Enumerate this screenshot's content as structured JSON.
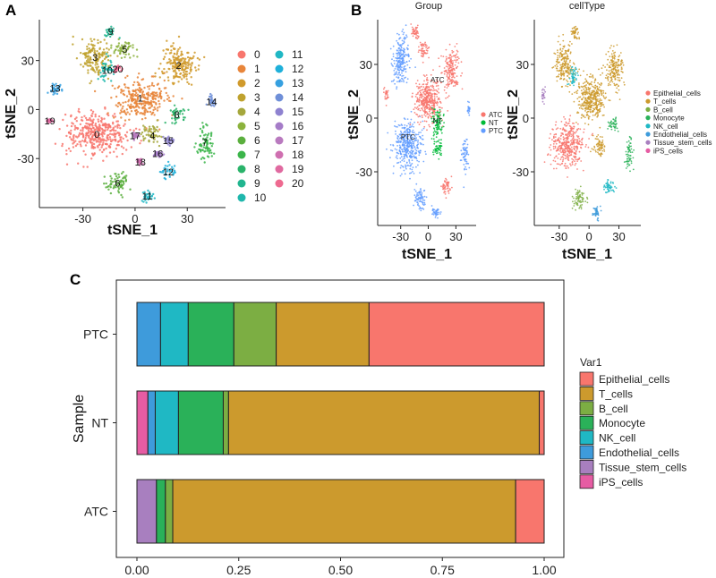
{
  "panel_letters": [
    "A",
    "B",
    "C"
  ],
  "colors": {
    "clusters": [
      "#F8766D",
      "#E8853A",
      "#D09A2C",
      "#BFA22E",
      "#A5A73C",
      "#8BB23C",
      "#5BAF3E",
      "#3BB54A",
      "#2AB36A",
      "#21B58F",
      "#1FB7AC",
      "#20B7C4",
      "#1FB0DA",
      "#36A0E0",
      "#6F8FD8",
      "#8E82D0",
      "#A57CC8",
      "#B97ABF",
      "#CF6FB0",
      "#E06AA0",
      "#EE6A90"
    ],
    "groups": [
      "#F8766D",
      "#00BA38",
      "#619CFF"
    ],
    "celltypes": [
      "#F8766D",
      "#CC9A2D",
      "#7CAE43",
      "#2AB159",
      "#1FB8C4",
      "#3E9BDB",
      "#A87FBF",
      "#E65CA3"
    ]
  },
  "chart_data": [
    {
      "type": "scatter",
      "panel": "A",
      "xlabel": "tSNE_1",
      "ylabel": "tSNE_2",
      "xticks": [
        -30,
        0,
        30
      ],
      "yticks": [
        -30,
        0,
        30
      ],
      "xlim": [
        -55,
        52
      ],
      "ylim": [
        -60,
        55
      ],
      "legend_entries": [
        "0",
        "1",
        "2",
        "3",
        "4",
        "5",
        "6",
        "7",
        "8",
        "9",
        "10",
        "11",
        "12",
        "13",
        "14",
        "15",
        "16",
        "17",
        "18",
        "19",
        "20"
      ],
      "clusters": [
        {
          "label": "0",
          "x": -22,
          "y": -15,
          "rx": 18,
          "ry": 13
        },
        {
          "label": "1",
          "x": 3,
          "y": 7,
          "rx": 15,
          "ry": 12
        },
        {
          "label": "2",
          "x": 25,
          "y": 27,
          "rx": 10,
          "ry": 12
        },
        {
          "label": "3",
          "x": -23,
          "y": 32,
          "rx": 9,
          "ry": 11
        },
        {
          "label": "4",
          "x": 10,
          "y": -16,
          "rx": 6,
          "ry": 6
        },
        {
          "label": "5",
          "x": -6,
          "y": 37,
          "rx": 7,
          "ry": 5
        },
        {
          "label": "6",
          "x": -10,
          "y": -45,
          "rx": 7,
          "ry": 6
        },
        {
          "label": "7",
          "x": 40,
          "y": -20,
          "rx": 5,
          "ry": 10
        },
        {
          "label": "8",
          "x": 24,
          "y": -3,
          "rx": 5,
          "ry": 5
        },
        {
          "label": "9",
          "x": -14,
          "y": 48,
          "rx": 4,
          "ry": 4
        },
        {
          "label": "10",
          "x": -16,
          "y": 24,
          "rx": 5,
          "ry": 6
        },
        {
          "label": "11",
          "x": 7,
          "y": -53,
          "rx": 4,
          "ry": 3
        },
        {
          "label": "12",
          "x": 19,
          "y": -38,
          "rx": 5,
          "ry": 4
        },
        {
          "label": "13",
          "x": -46,
          "y": 13,
          "rx": 3,
          "ry": 4
        },
        {
          "label": "14",
          "x": 44,
          "y": 5,
          "rx": 2,
          "ry": 4
        },
        {
          "label": "15",
          "x": 19,
          "y": -19,
          "rx": 3,
          "ry": 2
        },
        {
          "label": "16",
          "x": 13,
          "y": -27,
          "rx": 3,
          "ry": 2
        },
        {
          "label": "17",
          "x": 0,
          "y": -16,
          "rx": 2,
          "ry": 2
        },
        {
          "label": "18",
          "x": 3,
          "y": -32,
          "rx": 2,
          "ry": 2
        },
        {
          "label": "19",
          "x": -49,
          "y": -7,
          "rx": 2,
          "ry": 1
        },
        {
          "label": "20",
          "x": -10,
          "y": 25,
          "rx": 2,
          "ry": 2
        }
      ]
    },
    {
      "type": "scatter",
      "panel": "B-group",
      "title": "Group",
      "xlabel": "tSNE_1",
      "ylabel": "tSNE_2",
      "xticks": [
        -30,
        0,
        30
      ],
      "yticks": [
        -30,
        0,
        30
      ],
      "legend_entries": [
        "ATC",
        "NT",
        "PTC"
      ],
      "point_labels": [
        "ATC",
        "NT",
        "PTC"
      ]
    },
    {
      "type": "scatter",
      "panel": "B-celltype",
      "title": "cellType",
      "xlabel": "tSNE_1",
      "ylabel": "tSNE_2",
      "xticks": [
        -30,
        0,
        30
      ],
      "yticks": [
        -30,
        0,
        30
      ],
      "legend_entries": [
        "Epithelial_cells",
        "T_cells",
        "B_cell",
        "Monocyte",
        "NK_cell",
        "Endothelial_cells",
        "Tissue_stem_cells",
        "iPS_cells"
      ]
    },
    {
      "type": "bar",
      "panel": "C",
      "orientation": "horizontal",
      "stacked": true,
      "categories": [
        "PTC",
        "NT",
        "ATC"
      ],
      "xlabel": "",
      "ylabel": "Sample",
      "xticks": [
        "0.00",
        "0.25",
        "0.50",
        "0.75",
        "1.00"
      ],
      "xlim": [
        0,
        1
      ],
      "legend_title": "Var1",
      "legend_entries": [
        "Epithelial_cells",
        "T_cells",
        "B_cell",
        "Monocyte",
        "NK_cell",
        "Endothelial_cells",
        "Tissue_stem_cells",
        "iPS_cells"
      ],
      "stack_order_left_to_right": [
        "iPS_cells",
        "Tissue_stem_cells",
        "Endothelial_cells",
        "NK_cell",
        "Monocyte",
        "B_cell",
        "T_cells",
        "Epithelial_cells"
      ],
      "series": [
        {
          "name": "iPS_cells",
          "values": [
            0.0,
            0.027,
            0.0
          ]
        },
        {
          "name": "Tissue_stem_cells",
          "values": [
            0.0,
            0.0,
            0.048
          ]
        },
        {
          "name": "Endothelial_cells",
          "values": [
            0.058,
            0.018,
            0.0
          ]
        },
        {
          "name": "NK_cell",
          "values": [
            0.068,
            0.057,
            0.0
          ]
        },
        {
          "name": "Monocyte",
          "values": [
            0.112,
            0.11,
            0.022
          ]
        },
        {
          "name": "B_cell",
          "values": [
            0.104,
            0.013,
            0.018
          ]
        },
        {
          "name": "T_cells",
          "values": [
            0.228,
            0.763,
            0.842
          ]
        },
        {
          "name": "Epithelial_cells",
          "values": [
            0.43,
            0.012,
            0.07
          ]
        }
      ]
    }
  ]
}
